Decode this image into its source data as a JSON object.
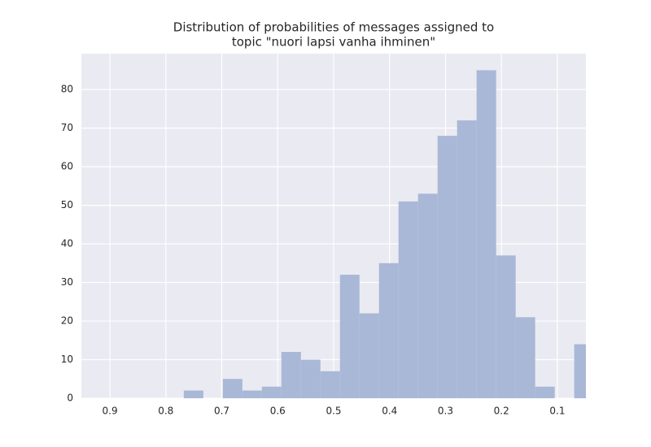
{
  "chart_data": {
    "type": "histogram",
    "title": [
      "Distribution of probabilities of messages assigned to",
      "topic \"nuori lapsi vanha ihminen\""
    ],
    "bins": [
      0.035,
      0.0699,
      0.1048,
      0.1397,
      0.1746,
      0.2095,
      0.2444,
      0.2793,
      0.3142,
      0.3491,
      0.384,
      0.4189,
      0.4538,
      0.4887,
      0.5236,
      0.5585,
      0.5934,
      0.6283,
      0.6632,
      0.6981,
      0.733,
      0.7679
    ],
    "values": [
      14,
      0,
      3,
      21,
      37,
      85,
      72,
      68,
      53,
      51,
      35,
      22,
      32,
      7,
      10,
      12,
      3,
      2,
      5,
      0,
      2
    ],
    "color": "#a9b8d6",
    "xlim": [
      0.951,
      0.049
    ],
    "xticks": [
      0.9,
      0.8,
      0.7,
      0.6,
      0.5,
      0.4,
      0.3,
      0.2,
      0.1
    ],
    "ylim": [
      0,
      89.3
    ],
    "yticks": [
      0,
      10,
      20,
      30,
      40,
      50,
      60,
      70,
      80
    ],
    "grid": true
  }
}
